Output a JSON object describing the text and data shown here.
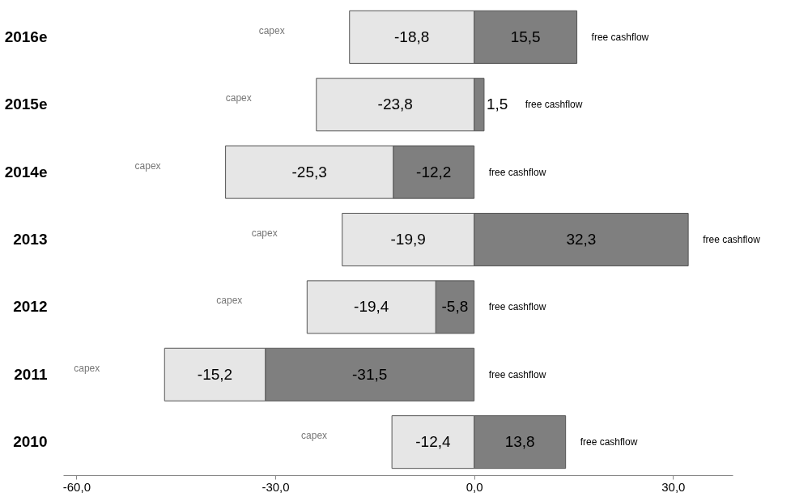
{
  "chart_data": {
    "type": "bar",
    "orientation": "horizontal",
    "stacked": true,
    "categories": [
      "2016e",
      "2015e",
      "2014e",
      "2013",
      "2012",
      "2011",
      "2010"
    ],
    "series": [
      {
        "name": "free cashflow",
        "color": "#7f7f7f",
        "values": [
          15.5,
          1.5,
          -12.2,
          32.3,
          -5.8,
          -31.5,
          13.8
        ],
        "value_labels": [
          "15,5",
          "1,5",
          "-12,2",
          "32,3",
          "-5,8",
          "-31,5",
          "13,8"
        ]
      },
      {
        "name": "capex",
        "color": "#e6e6e6",
        "values": [
          -18.8,
          -23.8,
          -25.3,
          -19.9,
          -19.4,
          -15.2,
          -12.4
        ],
        "value_labels": [
          "-18,8",
          "-23,8",
          "-25,3",
          "-19,9",
          "-19,4",
          "-15,2",
          "-12,4"
        ]
      }
    ],
    "xlim": [
      -62,
      39
    ],
    "xticks": [
      {
        "value": -60,
        "label": "-60,0"
      },
      {
        "value": -30,
        "label": "-30,0"
      },
      {
        "value": 0,
        "label": "0,0"
      },
      {
        "value": 30,
        "label": "30,0"
      }
    ],
    "grid": false,
    "legend": false
  }
}
